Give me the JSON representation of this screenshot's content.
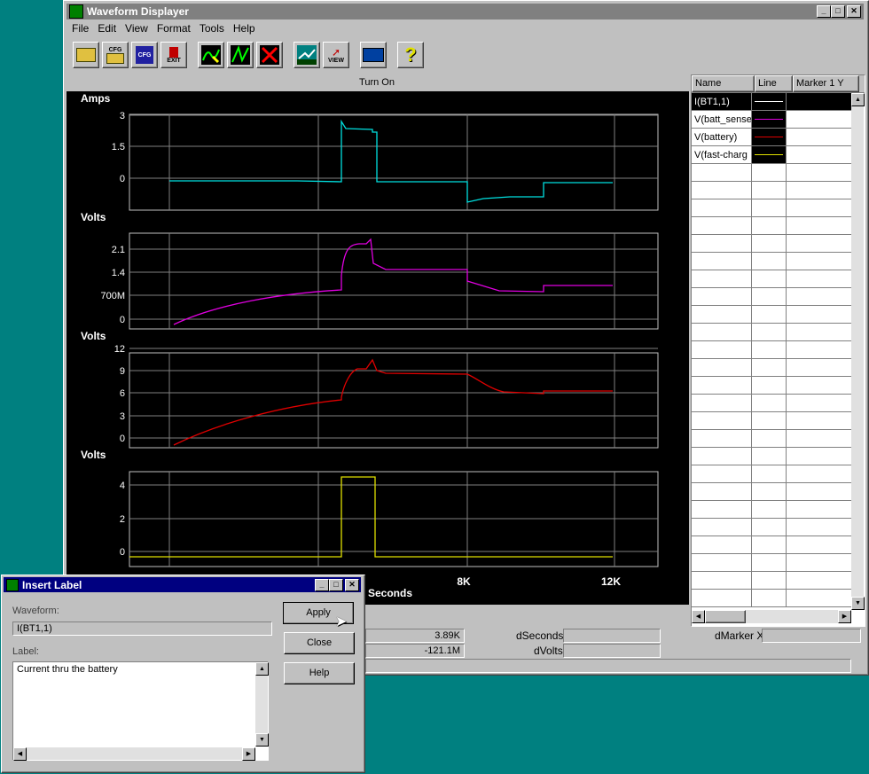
{
  "window": {
    "title": "Waveform Displayer"
  },
  "menu": [
    "File",
    "Edit",
    "View",
    "Format",
    "Tools",
    "Help"
  ],
  "toolbar": {
    "cfg_label": "CFG",
    "cfg2_label": "CFG",
    "exit_label": "EXIT",
    "view_label": "VIEW",
    "help_label": "?"
  },
  "plot_title": "Turn On",
  "x_axis": {
    "label": "Seconds",
    "ticks": [
      "8K",
      "12K"
    ]
  },
  "plots": [
    {
      "ylabel": "Amps",
      "ticks": [
        "3",
        "1.5",
        "0"
      ],
      "color": "#00e0e0"
    },
    {
      "ylabel": "Volts",
      "ticks": [
        "2.1",
        "1.4",
        "700M",
        "0"
      ],
      "color": "#e000e0"
    },
    {
      "ylabel": "Volts",
      "ticks": [
        "12",
        "9",
        "6",
        "3",
        "0"
      ],
      "color": "#e00000"
    },
    {
      "ylabel": "Volts",
      "ticks": [
        "4",
        "2",
        "0"
      ],
      "color": "#e0e000"
    }
  ],
  "legend": {
    "headers": [
      "Name",
      "Line",
      "Marker 1 Y"
    ],
    "rows": [
      {
        "name": "I(BT1,1)",
        "color": "#ffffff"
      },
      {
        "name": "V(batt_sense",
        "color": "#e000e0"
      },
      {
        "name": "V(battery)",
        "color": "#e00000"
      },
      {
        "name": "V(fast-charg",
        "color": "#e0e000"
      }
    ]
  },
  "status": {
    "seconds_value": "3.89K",
    "dseconds_label": "dSeconds",
    "volts_value": "-121.1M",
    "dvolts_label": "dVolts",
    "dmarkerx_label": "dMarker X"
  },
  "dialog": {
    "title": "Insert Label",
    "waveform_label": "Waveform:",
    "waveform_value": "I(BT1,1)",
    "label_label": "Label:",
    "label_value": "Current thru the battery",
    "apply": "Apply",
    "close": "Close",
    "help": "Help"
  }
}
